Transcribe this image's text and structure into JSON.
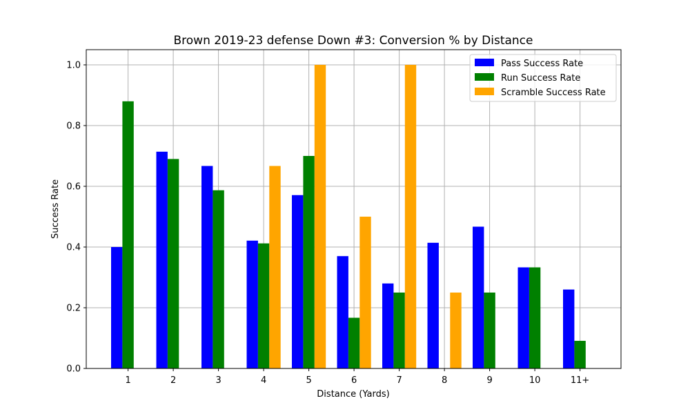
{
  "chart_data": {
    "type": "bar",
    "title": "Brown 2019-23 defense Down #3: Conversion % by Distance",
    "xlabel": "Distance (Yards)",
    "ylabel": "Success Rate",
    "categories": [
      "1",
      "2",
      "3",
      "4",
      "5",
      "6",
      "7",
      "8",
      "9",
      "10",
      "11+"
    ],
    "ylim": [
      0,
      1.05
    ],
    "yticks": [
      "0.0",
      "0.2",
      "0.4",
      "0.6",
      "0.8",
      "1.0"
    ],
    "grid": true,
    "legend_position": "top-right",
    "series": [
      {
        "name": "Pass Success Rate",
        "color": "#0000ff",
        "values": [
          0.4,
          0.714,
          0.667,
          0.421,
          0.571,
          0.37,
          0.28,
          0.414,
          0.467,
          0.333,
          0.26
        ]
      },
      {
        "name": "Run Success Rate",
        "color": "#008000",
        "values": [
          0.88,
          0.69,
          0.587,
          0.412,
          0.7,
          0.167,
          0.25,
          null,
          0.25,
          0.333,
          0.091
        ]
      },
      {
        "name": "Scramble Success Rate",
        "color": "#ffa500",
        "values": [
          null,
          null,
          null,
          0.667,
          1.0,
          0.5,
          1.0,
          0.25,
          null,
          null,
          null
        ]
      }
    ]
  }
}
